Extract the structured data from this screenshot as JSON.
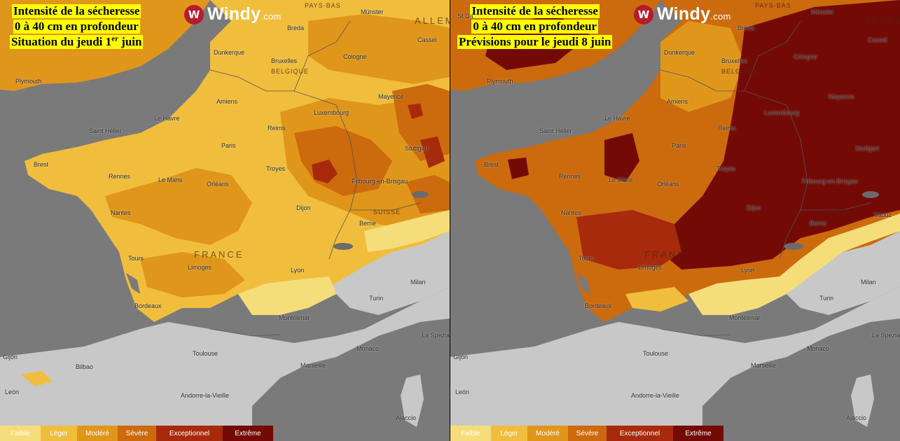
{
  "colors": {
    "faible": "#f5de7a",
    "leger": "#f0be3c",
    "modere": "#e0961a",
    "severe": "#cc6a0e",
    "exceptionnel": "#a82a0c",
    "extreme": "#740a06",
    "no_drought": "#c8c8c8",
    "sea": "#7a7a7a",
    "title_bg": "#ffff00",
    "windy_red": "#b71c2c"
  },
  "brand": {
    "icon": "windy-logo-icon",
    "name": "Windy",
    "suffix": ".com"
  },
  "panels": [
    {
      "title_line1": "Intensité de la sécheresse",
      "title_line2": "0 à 40 cm en profondeur",
      "title_line3_prefix": "Situation du jeudi 1",
      "title_line3_sup": "er",
      "title_line3_suffix": " juin"
    },
    {
      "title_line1": "Intensité de la sécheresse",
      "title_line2": "0 à 40 cm en profondeur",
      "title_line3_prefix": "Prévisions pour le jeudi 8 juin",
      "title_line3_sup": "",
      "title_line3_suffix": ""
    }
  ],
  "cities": {
    "plymouth": "Plymouth",
    "st_david": "St Da",
    "pays_bas": "PAYS-BAS",
    "munster": "Münster",
    "breda": "Breda",
    "allemagne": "ALLEM",
    "cassel": "Cassel",
    "dunkerque": "Dunkerque",
    "bruxelles": "Bruxelles",
    "belgique": "BELGIQUE",
    "cologne": "Cologne",
    "amiens": "Amiens",
    "mayence": "Mayence",
    "luxembourg": "Luxembourg",
    "le_havre": "Le Havre",
    "saint_helier": "Saint Hélier",
    "reims": "Reims",
    "paris": "Paris",
    "stuttgart": "Stuttgart",
    "brest": "Brest",
    "rennes": "Rennes",
    "le_mans": "Le Mans",
    "orleans": "Orléans",
    "troyes": "Troyes",
    "fribourg": "Fribourg-en-Brisgau",
    "nantes": "Nantes",
    "dijon": "Dijon",
    "suisse": "SUISSE",
    "berne": "Berne",
    "vaduz": "Vaduz",
    "france": "FRANCE",
    "tours": "Tours",
    "limoges": "Limoges",
    "lyon": "Lyon",
    "milan": "Milan",
    "bordeaux": "Bordeaux",
    "turin": "Turin",
    "montelimar": "Montélimar",
    "toulouse": "Toulouse",
    "monaco": "Monaco",
    "la_spezia": "La Spezia",
    "gijon": "Gijón",
    "bilbao": "Bilbao",
    "marseille": "Marseille",
    "leon": "León",
    "andorre": "Andorre-la-Vieille",
    "ajaccio": "Ajaccio"
  },
  "legend": [
    {
      "label": "Faible",
      "color_key": "faible"
    },
    {
      "label": "Léger",
      "color_key": "leger"
    },
    {
      "label": "Modéré",
      "color_key": "modere"
    },
    {
      "label": "Sévère",
      "color_key": "severe"
    },
    {
      "label": "Exceptionnel",
      "color_key": "exceptionnel"
    },
    {
      "label": "Extrême",
      "color_key": "extreme"
    }
  ]
}
